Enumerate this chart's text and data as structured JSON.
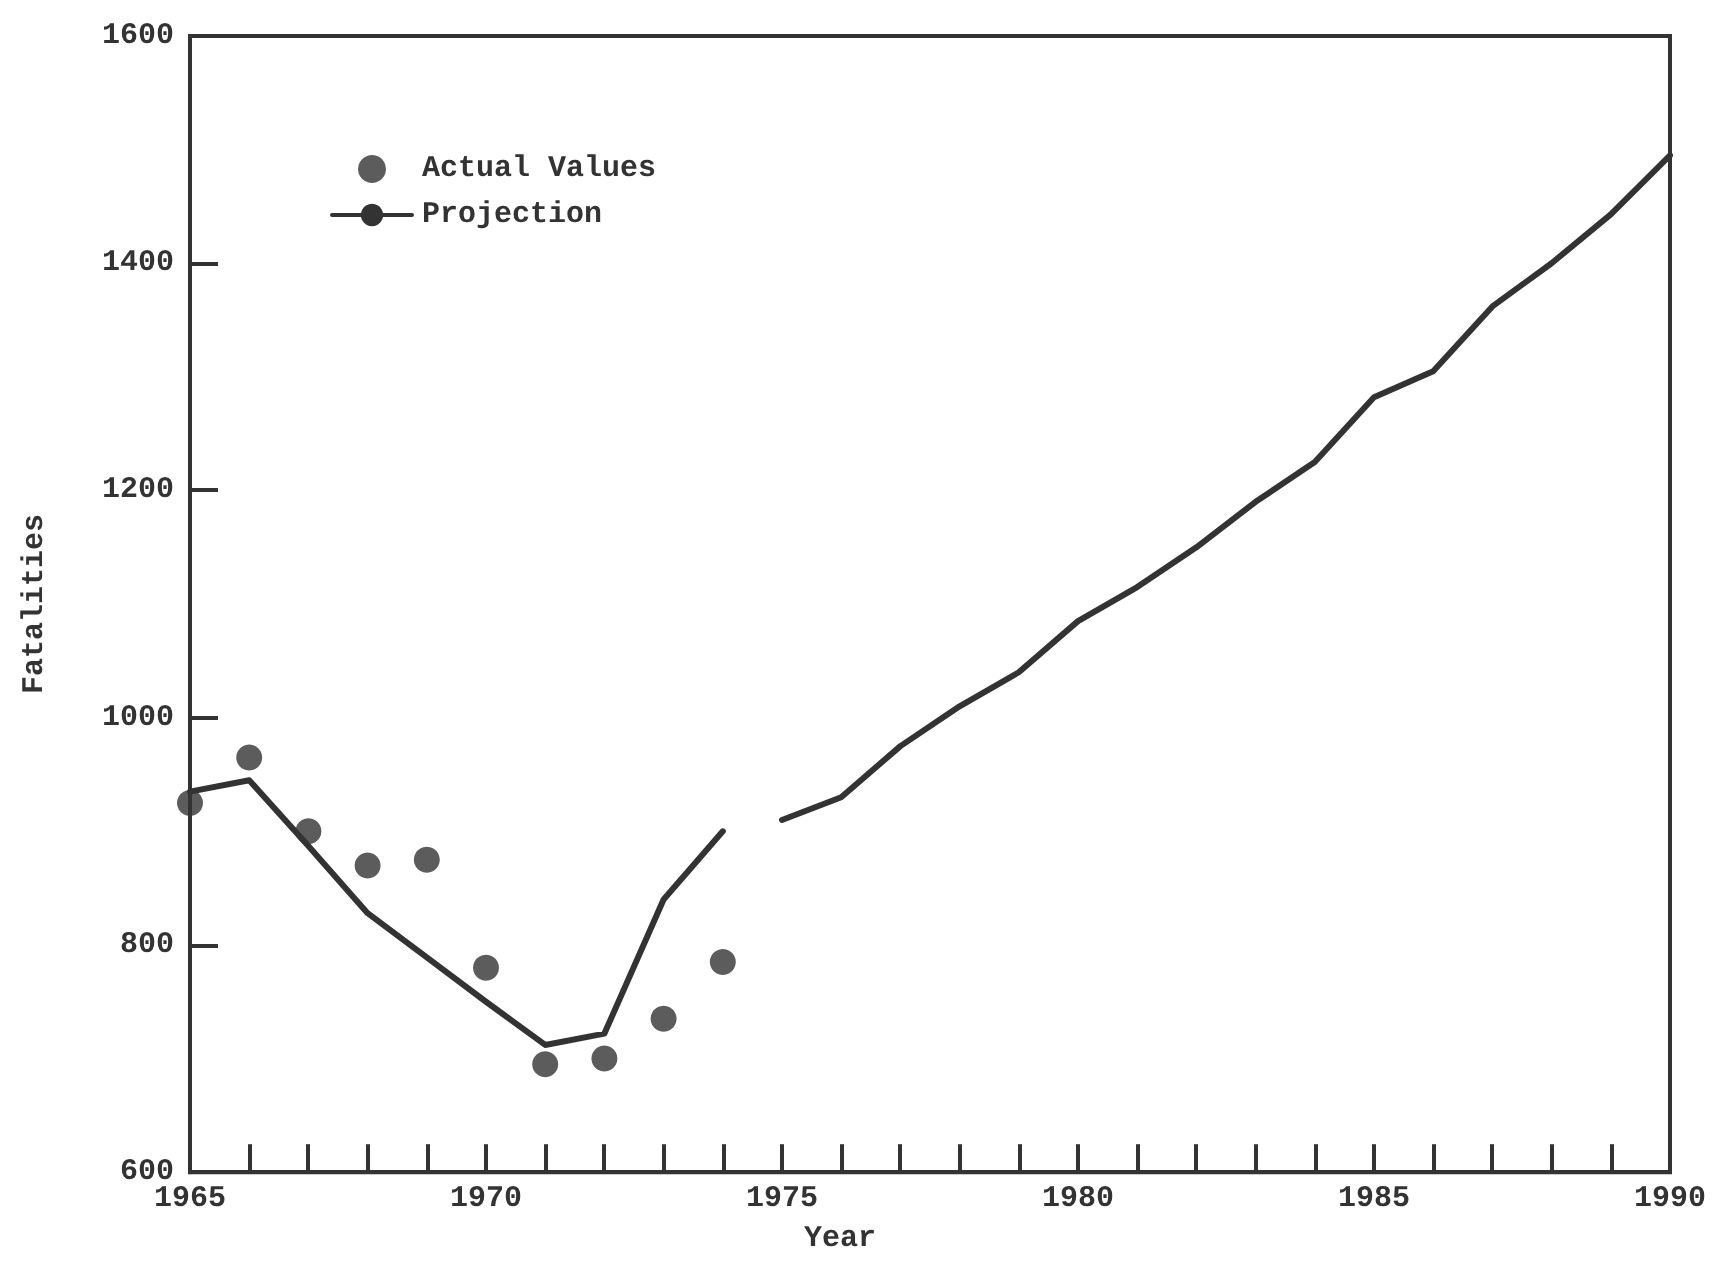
{
  "chart_data": {
    "type": "line",
    "xlabel": "Year",
    "ylabel": "Fatalities",
    "xlim": [
      1965,
      1990
    ],
    "ylim": [
      600,
      1600
    ],
    "xticks": [
      1965,
      {
        "value": 1966,
        "label": null
      },
      {
        "value": 1967,
        "label": null
      },
      {
        "value": 1968,
        "label": null
      },
      {
        "value": 1969,
        "label": null
      },
      1970,
      {
        "value": 1971,
        "label": null
      },
      {
        "value": 1972,
        "label": null
      },
      {
        "value": 1973,
        "label": null
      },
      {
        "value": 1974,
        "label": null
      },
      1975,
      {
        "value": 1976,
        "label": null
      },
      {
        "value": 1977,
        "label": null
      },
      {
        "value": 1978,
        "label": null
      },
      {
        "value": 1979,
        "label": null
      },
      1980,
      {
        "value": 1981,
        "label": null
      },
      {
        "value": 1982,
        "label": null
      },
      {
        "value": 1983,
        "label": null
      },
      {
        "value": 1984,
        "label": null
      },
      1985,
      {
        "value": 1986,
        "label": null
      },
      {
        "value": 1987,
        "label": null
      },
      {
        "value": 1988,
        "label": null
      },
      {
        "value": 1989,
        "label": null
      },
      1990
    ],
    "yticks": [
      600,
      800,
      1000,
      1200,
      1400,
      1600
    ],
    "grid": false,
    "legend": "top left",
    "series": [
      {
        "name": "Actual Values",
        "type": "scatter",
        "marker": "circle",
        "color": "#333333",
        "x": [
          1965,
          1966,
          1967,
          1968,
          1969,
          1970,
          1971,
          1972,
          1973
        ],
        "values": [
          925,
          965,
          900,
          870,
          875,
          780,
          695,
          700,
          735
        ]
      },
      {
        "type": "scatter",
        "marker": "circle",
        "color": "#333333",
        "x": [
          1974
        ],
        "values": [
          785
        ]
      },
      {
        "name": "Projection",
        "marker": "none",
        "color": "#333333",
        "x": [
          1965,
          1966,
          1967,
          1968,
          1969,
          1970,
          1971,
          1972,
          1973,
          1974,
          1974.5,
          1975,
          1976,
          1977,
          1978,
          1979,
          1980,
          1981,
          1982,
          1983,
          1984,
          1985,
          1986,
          1987,
          1988,
          1989,
          1990
        ],
        "values": [
          935,
          945,
          887,
          828,
          789,
          750,
          712,
          722,
          840,
          900,
          null,
          910,
          930,
          975,
          1010,
          1040,
          1085,
          1115,
          1150,
          1190,
          1225,
          1282,
          1305,
          1362,
          1400,
          1443,
          1495
        ]
      }
    ]
  }
}
